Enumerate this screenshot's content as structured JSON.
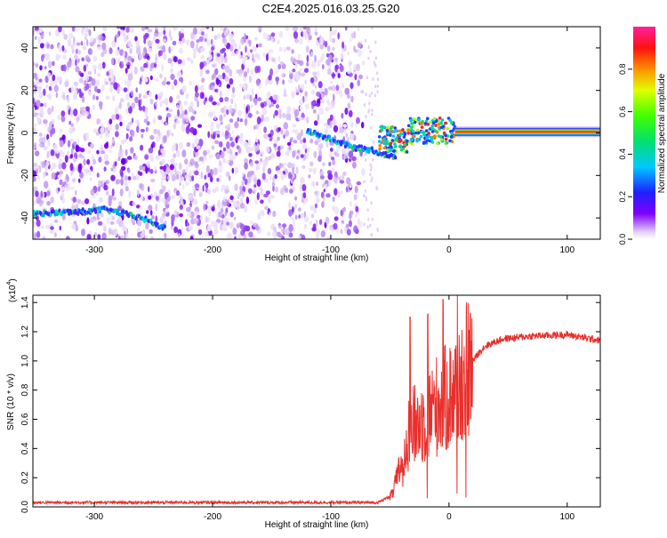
{
  "page": {
    "title": "C2E4.2025.016.03.25.G20"
  },
  "chart_data": [
    {
      "type": "heatmap",
      "title": "C2E4.2025.016.03.25.G20",
      "xlabel": "Height of straight line (km)",
      "ylabel": "Frequency (Hz)",
      "xlim": [
        -352,
        128
      ],
      "ylim": [
        -50,
        50
      ],
      "x_ticks": [
        -300,
        -200,
        -100,
        0,
        100
      ],
      "y_ticks": [
        -40,
        -20,
        0,
        20,
        40
      ],
      "colorbar": {
        "label": "Normalized spectral amplitude",
        "range": [
          0,
          1
        ],
        "ticks": [
          "0.0",
          "0.2",
          "0.4",
          "0.6",
          "0.8"
        ],
        "tick_values": [
          0.0,
          0.2,
          0.4,
          0.6,
          0.8
        ],
        "colormap": "rainbow (white-purple-blue-cyan-green-yellow-orange-red-magenta)"
      },
      "features": {
        "noise_region_x": [
          -352,
          -72
        ],
        "signal_track": [
          {
            "x": -352,
            "y": -38
          },
          {
            "x": -310,
            "y": -37
          },
          {
            "x": -290,
            "y": -36
          },
          {
            "x": -260,
            "y": -40
          },
          {
            "x": -240,
            "y": -45
          }
        ],
        "descending_track": [
          {
            "x": -120,
            "y": 1
          },
          {
            "x": -100,
            "y": -3
          },
          {
            "x": -80,
            "y": -7
          },
          {
            "x": -65,
            "y": -8
          },
          {
            "x": -45,
            "y": -12
          }
        ],
        "carrier_line_y": 0.5,
        "carrier_start_x": 5,
        "carrier_end_x": 128
      }
    },
    {
      "type": "line",
      "title": "",
      "xlabel": "Height of straight line (km)",
      "ylabel": "SNR (10 * v/v)",
      "y_multiplier": "(x10",
      "y_multiplier_exp": "4",
      "y_multiplier_close": ")",
      "xlim": [
        -352,
        128
      ],
      "ylim": [
        0,
        1.45
      ],
      "x_ticks": [
        -300,
        -200,
        -100,
        0,
        100
      ],
      "y_ticks": [
        "0.0",
        "0.2",
        "0.4",
        "0.6",
        "0.8",
        "1.0",
        "1.2",
        "1.4"
      ],
      "y_tick_values": [
        0.0,
        0.2,
        0.4,
        0.6,
        0.8,
        1.0,
        1.2,
        1.4
      ],
      "series": [
        {
          "color": "#e8302c",
          "profile": [
            {
              "x": -352,
              "y": 0.03
            },
            {
              "x": -60,
              "y": 0.03
            },
            {
              "x": -48,
              "y": 0.08
            },
            {
              "x": -42,
              "y": 0.25
            },
            {
              "x": -35,
              "y": 0.5
            },
            {
              "x": -30,
              "y": 0.55
            },
            {
              "x": -20,
              "y": 0.6
            },
            {
              "x": -10,
              "y": 0.7
            },
            {
              "x": 0,
              "y": 0.75
            },
            {
              "x": 10,
              "y": 0.85
            },
            {
              "x": 20,
              "y": 1.0
            },
            {
              "x": 30,
              "y": 1.1
            },
            {
              "x": 45,
              "y": 1.15
            },
            {
              "x": 70,
              "y": 1.17
            },
            {
              "x": 100,
              "y": 1.18
            },
            {
              "x": 128,
              "y": 1.14
            }
          ],
          "spikes": [
            {
              "x": -33,
              "y": 1.3
            },
            {
              "x": -18,
              "y": 1.32
            },
            {
              "x": -5,
              "y": 1.42
            },
            {
              "x": 7,
              "y": 1.45
            }
          ]
        }
      ]
    }
  ]
}
